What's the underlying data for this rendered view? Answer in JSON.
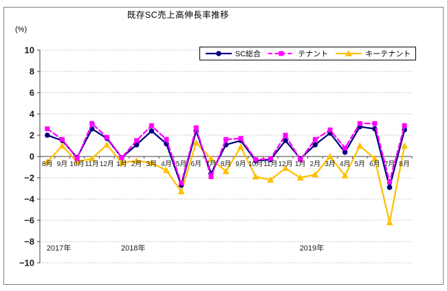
{
  "window": {
    "background": "#ffffff",
    "frame_border_color": "#808080"
  },
  "chart_data": {
    "type": "line",
    "title": "既存SC売上高伸長率推移",
    "y_unit_label": "(%)",
    "ylim": [
      -10,
      10
    ],
    "ytick_step": 2,
    "ytick_values": [
      10,
      8,
      6,
      4,
      2,
      0,
      -2,
      -4,
      -6,
      -8,
      -10
    ],
    "ytick_labels": [
      "10",
      "8",
      "6",
      "4",
      "2",
      "0",
      "−2",
      "−4",
      "−6",
      "−8",
      "−10"
    ],
    "grid": "horizontal-dotted",
    "legend_position": "top-inside",
    "categories": [
      "8月",
      "9月",
      "10月",
      "11月",
      "12月",
      "1月",
      "2月",
      "3月",
      "4月",
      "5月",
      "6月",
      "7月",
      "8月",
      "9月",
      "10月",
      "11月",
      "12月",
      "1月",
      "2月",
      "3月",
      "4月",
      "5月",
      "6月",
      "7月",
      "8月"
    ],
    "year_markers": [
      {
        "label": "2017年",
        "index": 0
      },
      {
        "label": "2018年",
        "index": 5
      },
      {
        "label": "2019年",
        "index": 17
      }
    ],
    "series": [
      {
        "name": "SC総合",
        "color": "#000080",
        "marker": "circle",
        "line": "solid",
        "values": [
          2.0,
          1.5,
          -0.1,
          2.6,
          1.7,
          -0.1,
          1.1,
          2.4,
          1.2,
          -2.7,
          2.4,
          -1.6,
          1.1,
          1.5,
          -0.4,
          -0.3,
          1.5,
          -0.2,
          1.1,
          2.2,
          0.4,
          2.8,
          2.6,
          -2.9,
          2.5
        ]
      },
      {
        "name": "テナント",
        "color": "#FF00FF",
        "marker": "square",
        "line": "dashed",
        "values": [
          2.6,
          1.6,
          -0.2,
          3.1,
          1.8,
          -0.1,
          1.5,
          2.9,
          1.6,
          -2.5,
          2.7,
          -1.9,
          1.6,
          1.7,
          -0.3,
          -0.2,
          2.0,
          -0.3,
          1.6,
          2.5,
          0.8,
          3.1,
          3.1,
          -2.4,
          2.9
        ]
      },
      {
        "name": "キーテナント",
        "color": "#FFC000",
        "marker": "triangle",
        "line": "solid",
        "values": [
          -0.5,
          1.0,
          -0.5,
          -0.2,
          1.1,
          -0.6,
          -0.4,
          -0.6,
          -1.3,
          -3.3,
          1.3,
          -0.2,
          -1.4,
          0.9,
          -1.9,
          -2.2,
          -1.1,
          -2.0,
          -1.7,
          0.0,
          -1.8,
          1.0,
          -0.2,
          -6.2,
          1.0
        ]
      }
    ]
  }
}
